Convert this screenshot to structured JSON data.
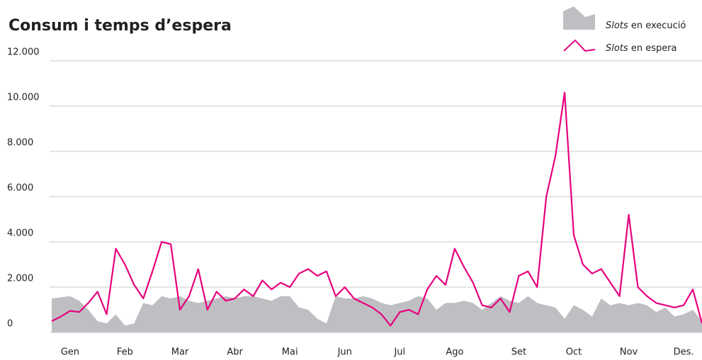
{
  "chart_data": {
    "type": "area_line",
    "title": "Consum i temps d’espera",
    "categories": [
      null,
      null,
      "Gen",
      null,
      null,
      null,
      null,
      null,
      "Feb",
      null,
      null,
      null,
      null,
      null,
      "Mar",
      null,
      null,
      null,
      null,
      null,
      "Abr",
      null,
      null,
      null,
      null,
      null,
      "Mai",
      null,
      null,
      null,
      null,
      null,
      "Jun",
      null,
      null,
      null,
      null,
      null,
      "Jul",
      null,
      null,
      null,
      null,
      null,
      "Ago",
      null,
      null,
      null,
      null,
      null,
      null,
      "Set",
      null,
      null,
      null,
      null,
      null,
      "Oct",
      null,
      null,
      null,
      null,
      null,
      "Nov",
      null,
      null,
      null,
      null,
      null,
      "Des.",
      null,
      null
    ],
    "series": [
      {
        "name": "Slots en execució",
        "color": "#bfbfc3",
        "values": [
          1500,
          1550,
          1600,
          1400,
          1000,
          500,
          400,
          800,
          300,
          400,
          1300,
          1200,
          1600,
          1500,
          1600,
          1400,
          1300,
          1400,
          1500,
          1600,
          1500,
          1600,
          1600,
          1500,
          1400,
          1600,
          1600,
          1100,
          1000,
          600,
          400,
          1600,
          1500,
          1500,
          1600,
          1500,
          1300,
          1200,
          1300,
          1400,
          1600,
          1500,
          1000,
          1300,
          1300,
          1400,
          1300,
          1000,
          1300,
          1600,
          1400,
          1300,
          1600,
          1300,
          1200,
          1100,
          600,
          1200,
          1000,
          700,
          1500,
          1200,
          1300,
          1200,
          1300,
          1200,
          900,
          1100,
          700,
          800,
          1000,
          500
        ]
      },
      {
        "name": "Slots en espera",
        "color": "#e6007e",
        "values": [
          500,
          700,
          950,
          900,
          1300,
          1800,
          800,
          3700,
          3000,
          2100,
          1500,
          2700,
          4000,
          3900,
          1000,
          1600,
          2800,
          1000,
          1800,
          1400,
          1500,
          1900,
          1600,
          2300,
          1900,
          2200,
          2000,
          2600,
          2800,
          2500,
          2700,
          1600,
          2000,
          1500,
          1300,
          1100,
          800,
          300,
          900,
          1000,
          800,
          1900,
          2500,
          2100,
          3700,
          2900,
          2200,
          1200,
          1100,
          1500,
          900,
          2500,
          2700,
          2000,
          6000,
          7800,
          10600,
          4300,
          3000,
          2600,
          2800,
          2200,
          1600,
          5200,
          2000,
          1600,
          1300,
          1200,
          1100,
          1200,
          1900,
          400
        ]
      }
    ],
    "ylim": [
      0,
      12000
    ],
    "yticks": [
      0,
      {
        "value": 2000,
        "label": "2.000"
      },
      {
        "value": 4000,
        "label": "4.000"
      },
      {
        "value": 6000,
        "label": "6.000"
      },
      {
        "value": 8000,
        "label": "8.000"
      },
      {
        "value": 10000,
        "label": "10.000"
      },
      {
        "value": 12000,
        "label": "12.000"
      }
    ],
    "grid": true
  }
}
